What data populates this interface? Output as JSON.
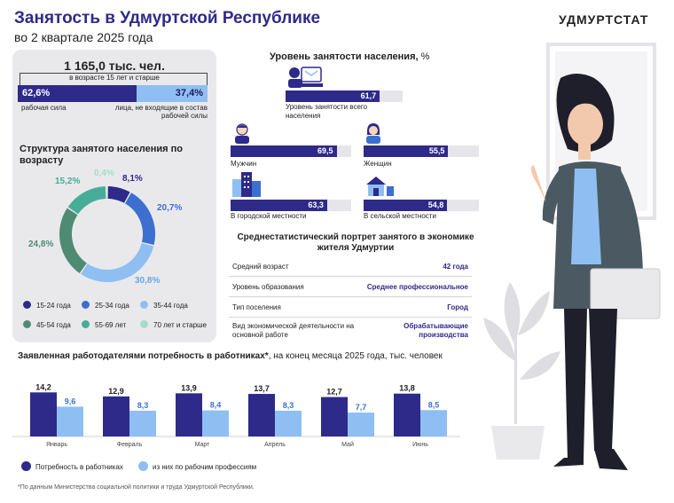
{
  "header": {
    "title": "Занятость в Удмуртской Республике",
    "subtitle": "во 2 квартале 2025 года",
    "logo": "УДМУРТСТАТ"
  },
  "population": {
    "total": "1 165,0 тыс. чел.",
    "total_note": "в возрасте 15 лет и старше",
    "labor_force_pct": 62.6,
    "labor_force_value": "62,6%",
    "labor_force_label": "рабочая сила",
    "outside_pct": 37.4,
    "outside_value": "37,4%",
    "outside_label": "лица, не входящие в состав рабочей силы"
  },
  "age_structure": {
    "title": "Структура занятого населения по возрасту",
    "segments": [
      {
        "name": "15-24 года",
        "value": 8.1,
        "label": "8,1%",
        "color": "#2e2a8a"
      },
      {
        "name": "25-34 года",
        "value": 20.7,
        "label": "20,7%",
        "color": "#3d6fd0"
      },
      {
        "name": "35-44 года",
        "value": 30.8,
        "label": "30,8%",
        "color": "#8fbff2"
      },
      {
        "name": "45-54 года",
        "value": 24.8,
        "label": "24,8%",
        "color": "#4f8a72"
      },
      {
        "name": "55-69 лет",
        "value": 15.2,
        "label": "15,2%",
        "color": "#48ad97"
      },
      {
        "name": "70 лет и старше",
        "value": 0.4,
        "label": "0,4%",
        "color": "#a7dcc6"
      }
    ]
  },
  "employment": {
    "title": "Уровень занятости населения,",
    "unit": " %",
    "items": [
      {
        "label": "Уровень занятости всего населения",
        "value": 61.7,
        "text": "61,7",
        "icon": "person-laptop-icon"
      },
      {
        "label": "Мужчин",
        "value": 69.5,
        "text": "69,5",
        "icon": "man-icon"
      },
      {
        "label": "Женщин",
        "value": 55.5,
        "text": "55,5",
        "icon": "woman-icon"
      },
      {
        "label": "В городской местности",
        "value": 63.3,
        "text": "63,3",
        "icon": "city-building-icon"
      },
      {
        "label": "В сельской местности",
        "value": 54.8,
        "text": "54,8",
        "icon": "village-house-icon"
      }
    ]
  },
  "portrait": {
    "title": "Среднестатистический портрет занятого в экономике жителя Удмуртии",
    "rows": [
      {
        "label": "Средний возраст",
        "value": "42 года"
      },
      {
        "label": "Уровень образования",
        "value": "Среднее профессиональное"
      },
      {
        "label": "Тип поселения",
        "value": "Город"
      },
      {
        "label": "Вид экономической деятельности на основной работе",
        "value": "Обрабатывающие производства"
      }
    ]
  },
  "chart_data": {
    "type": "bar",
    "title": "Заявленная работодателями потребность в работниках*",
    "subtitle": ", на конец месяца 2025 года, тыс. человек",
    "categories": [
      "Январь",
      "Февраль",
      "Март",
      "Апрель",
      "Май",
      "Июнь"
    ],
    "series": [
      {
        "name": "Потребность в работниках",
        "values": [
          14.2,
          12.9,
          13.9,
          13.7,
          12.7,
          13.8
        ],
        "labels": [
          "14,2",
          "12,9",
          "13,9",
          "13,7",
          "12,7",
          "13,8"
        ],
        "color": "#2e2a8a"
      },
      {
        "name": "из них по рабочим профессиям",
        "values": [
          9.6,
          8.3,
          8.4,
          8.3,
          7.7,
          8.5
        ],
        "labels": [
          "9,6",
          "8,3",
          "8,4",
          "8,3",
          "7,7",
          "8,5"
        ],
        "color": "#8fbff2"
      }
    ],
    "ylim": [
      0,
      16
    ]
  },
  "footnote": "*По данным Министерства социальной политики и труда Удмуртской Республики."
}
